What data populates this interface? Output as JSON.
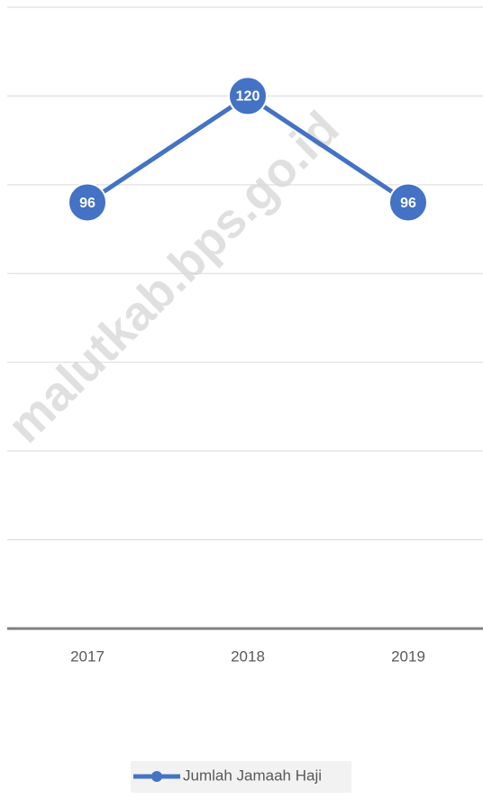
{
  "chart_data": {
    "type": "line",
    "categories": [
      "2017",
      "2018",
      "2019"
    ],
    "series": [
      {
        "name": "Jumlah Jamaah Haji",
        "color": "#4472c4",
        "values": [
          96,
          120,
          96
        ]
      }
    ],
    "ylim": [
      0,
      140
    ],
    "yticks": [
      0,
      20,
      40,
      60,
      80,
      100,
      120,
      140
    ],
    "grid": true,
    "legend": "bottom",
    "watermark": "malutkab.bps.go.id"
  }
}
